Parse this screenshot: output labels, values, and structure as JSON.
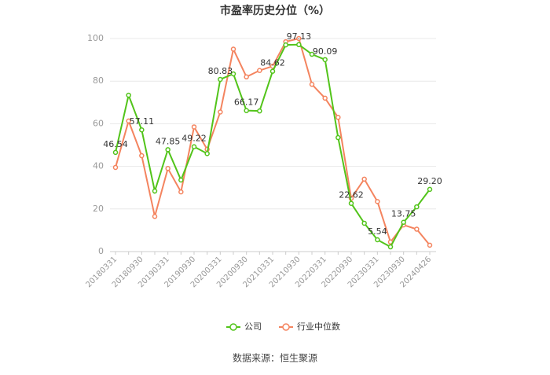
{
  "chart_data": {
    "type": "line",
    "title": "市盈率历史分位（%）",
    "categories": [
      "20180331",
      null,
      "20180930",
      null,
      "20190331",
      null,
      "20190930",
      null,
      "20200331",
      null,
      "20200930",
      null,
      "20210331",
      null,
      "20210930",
      null,
      "20220331",
      null,
      "20220930",
      null,
      "20230331",
      null,
      "20230930",
      null,
      "20240426"
    ],
    "series": [
      {
        "name": "公司",
        "color": "#52c41a",
        "values": [
          46.54,
          73.4,
          57.11,
          28.4,
          47.85,
          33.6,
          49.22,
          46,
          80.83,
          83.4,
          66.17,
          66,
          84.62,
          97,
          97.13,
          92.6,
          90.09,
          53.5,
          22.62,
          13.3,
          5.54,
          2.2,
          13.75,
          21,
          29.2
        ],
        "value_labels": [
          "46.54",
          null,
          "57.11",
          null,
          "47.85",
          null,
          "49.22",
          null,
          "80.83",
          null,
          "66.17",
          null,
          "84.62",
          null,
          "97.13",
          null,
          "90.09",
          null,
          "22.62",
          null,
          "5.54",
          null,
          "13.75",
          null,
          "29.20"
        ]
      },
      {
        "name": "行业中位数",
        "color": "#f4845f",
        "values": [
          39.5,
          61.3,
          45,
          16.5,
          39,
          28,
          58.5,
          48,
          65.5,
          95,
          82,
          85,
          87,
          98.5,
          100,
          78.5,
          72,
          63,
          25,
          34,
          23.5,
          4.5,
          12.5,
          10.5,
          3
        ]
      }
    ],
    "ylim": [
      0,
      100
    ],
    "yticks": [
      0,
      20,
      40,
      60,
      80,
      100
    ],
    "grid": true,
    "legend": "bottom"
  },
  "source": "数据来源：恒生聚源"
}
